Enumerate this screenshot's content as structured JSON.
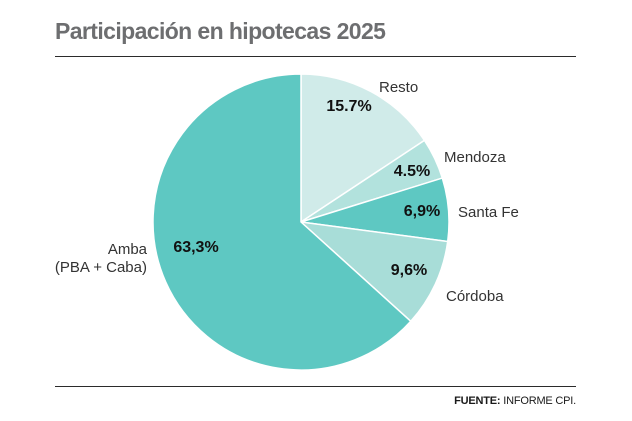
{
  "title": "Participación en hipotecas 2025",
  "source": {
    "label": "FUENTE:",
    "text": "INFORME CPI."
  },
  "chart_data": {
    "type": "pie",
    "title": "Participación en hipotecas 2025",
    "slices": [
      {
        "name": "Resto",
        "value": 15.7,
        "value_label": "15.7%",
        "color": "#d0ebe9"
      },
      {
        "name": "Mendoza",
        "value": 4.5,
        "value_label": "4.5%",
        "color": "#b2e2dd"
      },
      {
        "name": "Santa Fe",
        "value": 6.9,
        "value_label": "6,9%",
        "color": "#5ec8c2"
      },
      {
        "name": "Córdoba",
        "value": 9.6,
        "value_label": "9,6%",
        "color": "#a8ddd8"
      },
      {
        "name": "Amba (PBA + Caba)",
        "name_lines": [
          "Amba",
          "(PBA + Caba)"
        ],
        "value": 63.3,
        "value_label": "63,3%",
        "color": "#5ec8c2"
      }
    ],
    "start_angle": "12 o'clock",
    "direction": "clockwise",
    "legend": "none"
  }
}
